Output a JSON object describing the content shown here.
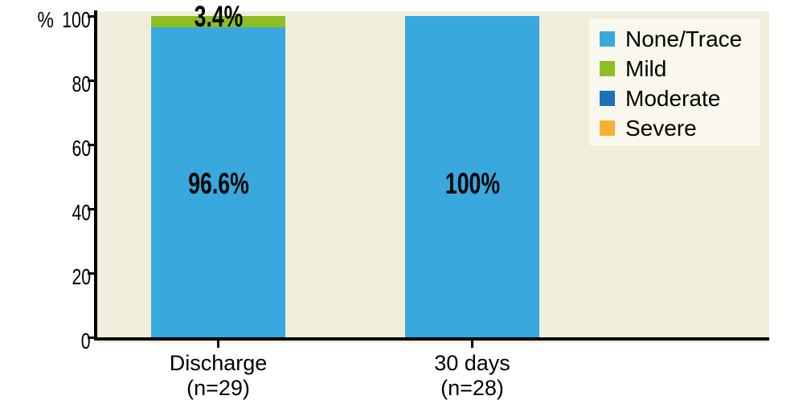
{
  "chart_data": {
    "type": "bar",
    "stacked": true,
    "y_axis": {
      "unit": "%",
      "min": 0,
      "max": 100,
      "ticks": [
        0,
        20,
        40,
        60,
        80,
        100
      ]
    },
    "categories": [
      {
        "line1": "Discharge",
        "line2": "(n=29)"
      },
      {
        "line1": "30 days",
        "line2": "(n=28)"
      }
    ],
    "series": [
      {
        "name": "None/Trace",
        "color": "#38a8de",
        "values": [
          96.6,
          100
        ]
      },
      {
        "name": "Mild",
        "color": "#8dbe22",
        "values": [
          3.4,
          0
        ]
      },
      {
        "name": "Moderate",
        "color": "#1f72b8",
        "values": [
          0,
          0
        ]
      },
      {
        "name": "Severe",
        "color": "#f8b033",
        "values": [
          0,
          0
        ]
      }
    ],
    "value_labels": [
      {
        "category": 0,
        "series": "None/Trace",
        "text": "96.6%",
        "placement": "inside"
      },
      {
        "category": 0,
        "series": "Mild",
        "text": "3.4%",
        "placement": "top"
      },
      {
        "category": 1,
        "series": "None/Trace",
        "text": "100%",
        "placement": "inside"
      }
    ],
    "legend": {
      "position": "top-right",
      "entries": [
        "None/Trace",
        "Mild",
        "Moderate",
        "Severe"
      ]
    },
    "colors": {
      "plot_background": "#f0eedb",
      "legend_background": "#faf8ee",
      "axis": "#000000"
    },
    "grid": false
  }
}
